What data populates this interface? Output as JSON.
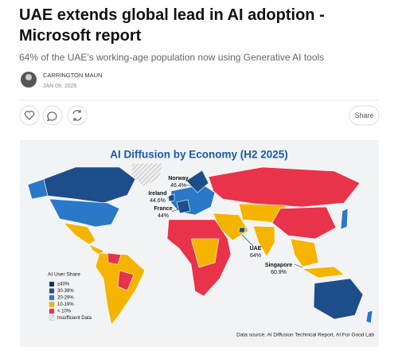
{
  "article": {
    "title": "UAE extends global lead in AI adoption - Microsoft report",
    "subtitle": "64% of the UAE's working-age population now using Generative AI tools",
    "author": "CARRINGTON MAUN",
    "date": "JAN 09, 2026",
    "share": "Share"
  },
  "map": {
    "title": "AI Diffusion by Economy (H2 2025)",
    "annotations": [
      {
        "name": "Norway",
        "value": "46.4%"
      },
      {
        "name": "Ireland",
        "value": "44.6%"
      },
      {
        "name": "France",
        "value": "44%"
      },
      {
        "name": "UAE",
        "value": "64%"
      },
      {
        "name": "Singapore",
        "value": "60.9%"
      }
    ],
    "legend": {
      "title": "AI User Share",
      "items": [
        "≥40%",
        "30-39%",
        "20-29%",
        "10-19%",
        "< 10%",
        "Insufficient Data"
      ]
    },
    "source": "Data source: AI Diffusion Technical Report, AI For Good Lab"
  }
}
